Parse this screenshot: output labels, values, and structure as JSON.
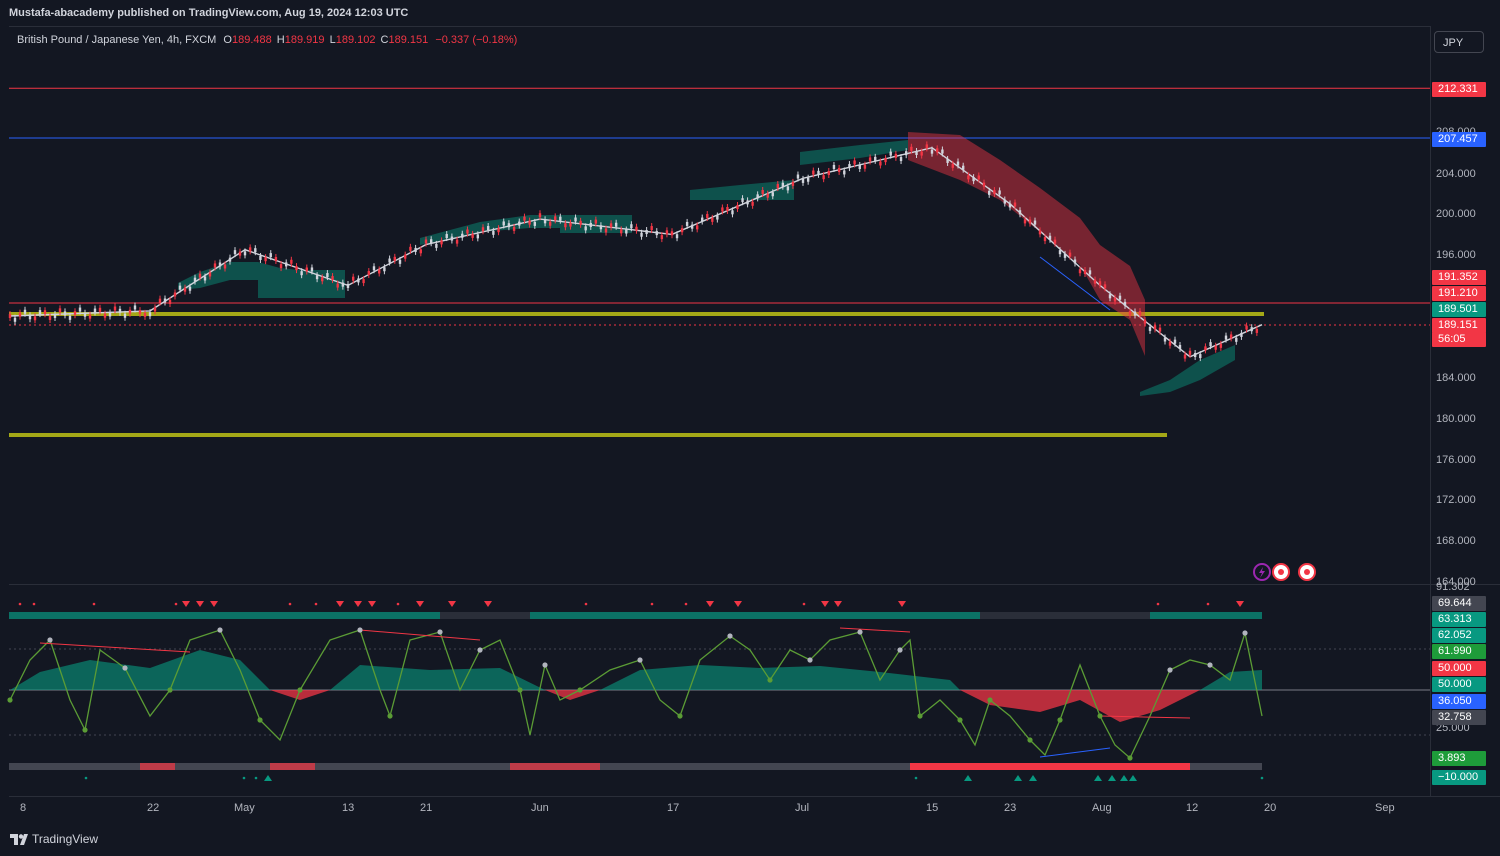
{
  "header": {
    "publisher_line": "Mustafa-abacademy published on TradingView.com, Aug 19, 2024 12:03 UTC"
  },
  "symbol": {
    "name": "British Pound / Japanese Yen, 4h, FXCM",
    "open_label": "O",
    "open": "189.488",
    "high_label": "H",
    "high": "189.919",
    "low_label": "L",
    "low": "189.102",
    "close_label": "C",
    "close": "189.151",
    "change": "−0.337 (−0.18%)"
  },
  "currency_button": "JPY",
  "price_axis": {
    "ticks": [
      "208.000",
      "204.000",
      "200.000",
      "196.000",
      "184.000",
      "180.000",
      "176.000",
      "172.000",
      "168.000",
      "164.000"
    ],
    "tags": [
      {
        "text": "212.331",
        "color": "#f23645"
      },
      {
        "text": "207.457",
        "color": "#2962ff"
      },
      {
        "text": "191.352",
        "color": "#f23645"
      },
      {
        "text": "191.210",
        "color": "#f23645"
      },
      {
        "text": "189.501",
        "color": "#089981"
      },
      {
        "text": "189.151",
        "color": "#f23645"
      },
      {
        "text": "56:05",
        "color": "#f23645"
      }
    ]
  },
  "oscillator_axis": {
    "ticks": [
      "91.302",
      "25.000"
    ],
    "tags": [
      {
        "text": "69.644",
        "color": "#434651"
      },
      {
        "text": "63.313",
        "color": "#089981"
      },
      {
        "text": "62.052",
        "color": "#089981"
      },
      {
        "text": "61.990",
        "color": "#1e9c3a"
      },
      {
        "text": "50.000",
        "color": "#f23645"
      },
      {
        "text": "50.000",
        "color": "#089981"
      },
      {
        "text": "36.050",
        "color": "#2962ff"
      },
      {
        "text": "32.758",
        "color": "#434651"
      },
      {
        "text": "3.893",
        "color": "#1e9c3a"
      },
      {
        "text": "−10.000",
        "color": "#089981"
      }
    ]
  },
  "time_axis": [
    "8",
    "22",
    "May",
    "13",
    "21",
    "Jun",
    "17",
    "Jul",
    "15",
    "23",
    "Aug",
    "12",
    "20",
    "Sep"
  ],
  "footer": {
    "brand": "TradingView"
  },
  "colors": {
    "background": "#131722",
    "bull": "#089981",
    "bear": "#f23645",
    "support": "#a4a817",
    "resistance_line": "#f23645",
    "blue_line": "#2962ff"
  },
  "chart_data": {
    "type": "line",
    "ylim": [
      164,
      212.331
    ],
    "x": [
      "Apr 8",
      "Apr 22",
      "May 1",
      "May 13",
      "May 21",
      "Jun 1",
      "Jun 17",
      "Jul 1",
      "Jul 15",
      "Jul 23",
      "Aug 1",
      "Aug 12",
      "Aug 19"
    ],
    "series": [
      {
        "values": [
          190.0,
          190.5,
          196.5,
          193.0,
          197.0,
          199.5,
          198.0,
          203.5,
          206.5,
          201.0,
          193.0,
          186.0,
          189.15
        ]
      }
    ],
    "horizontal_levels": [
      212.331,
      207.457,
      190.2,
      189.501,
      178.5
    ]
  }
}
